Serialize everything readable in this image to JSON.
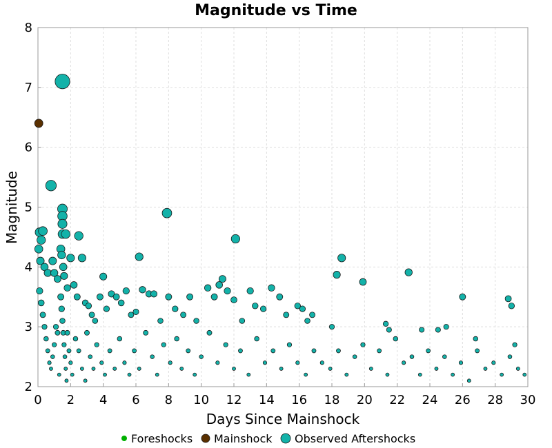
{
  "chart_data": {
    "type": "scatter",
    "title": "Magnitude vs Time",
    "xlabel": "Days Since Mainshock",
    "ylabel": "Magnitude",
    "xlim": [
      0,
      30
    ],
    "ylim": [
      2,
      8
    ],
    "xticks": [
      "0",
      "2",
      "4",
      "6",
      "8",
      "10",
      "12",
      "14",
      "16",
      "18",
      "20",
      "22",
      "24",
      "26",
      "28",
      "30"
    ],
    "yticks": [
      "2",
      "3",
      "4",
      "5",
      "6",
      "7",
      "8"
    ],
    "grid": true,
    "legend_position": "bottom",
    "series": [
      {
        "name": "Foreshocks",
        "color": "#00b000",
        "points": []
      },
      {
        "name": "Mainshock",
        "color": "#5a3000",
        "points": [
          [
            0.05,
            6.4
          ]
        ]
      },
      {
        "name": "Observed Aftershocks",
        "color": "#13b2a9",
        "points": [
          [
            1.5,
            7.1
          ],
          [
            0.8,
            5.36
          ],
          [
            7.9,
            4.9
          ],
          [
            12.1,
            4.47
          ],
          [
            18.6,
            4.15
          ],
          [
            22.7,
            3.91
          ],
          [
            19.9,
            3.75
          ],
          [
            6.2,
            4.17
          ],
          [
            1.5,
            4.97
          ],
          [
            1.5,
            4.85
          ],
          [
            1.5,
            4.72
          ],
          [
            1.5,
            4.55
          ],
          [
            1.7,
            4.55
          ],
          [
            2.5,
            4.52
          ],
          [
            0.1,
            4.58
          ],
          [
            0.2,
            4.45
          ],
          [
            0.3,
            4.6
          ],
          [
            0.05,
            4.3
          ],
          [
            0.15,
            4.1
          ],
          [
            0.4,
            4.0
          ],
          [
            0.6,
            3.9
          ],
          [
            0.9,
            4.1
          ],
          [
            1.0,
            3.9
          ],
          [
            1.2,
            3.8
          ],
          [
            1.4,
            4.3
          ],
          [
            1.45,
            4.2
          ],
          [
            1.55,
            4.0
          ],
          [
            1.6,
            3.85
          ],
          [
            1.8,
            3.65
          ],
          [
            2.0,
            4.15
          ],
          [
            2.2,
            3.7
          ],
          [
            2.4,
            3.5
          ],
          [
            2.7,
            4.15
          ],
          [
            2.9,
            3.4
          ],
          [
            3.1,
            3.35
          ],
          [
            3.3,
            3.2
          ],
          [
            3.5,
            3.1
          ],
          [
            3.8,
            3.5
          ],
          [
            4.0,
            3.84
          ],
          [
            4.2,
            3.3
          ],
          [
            4.5,
            3.55
          ],
          [
            4.8,
            3.5
          ],
          [
            5.1,
            3.4
          ],
          [
            5.4,
            3.6
          ],
          [
            5.7,
            3.2
          ],
          [
            6.0,
            3.25
          ],
          [
            6.4,
            3.62
          ],
          [
            6.8,
            3.55
          ],
          [
            7.1,
            3.55
          ],
          [
            7.5,
            3.1
          ],
          [
            8.0,
            3.5
          ],
          [
            8.4,
            3.3
          ],
          [
            8.9,
            3.2
          ],
          [
            9.3,
            3.5
          ],
          [
            9.7,
            3.1
          ],
          [
            10.4,
            3.65
          ],
          [
            10.8,
            3.5
          ],
          [
            11.1,
            3.7
          ],
          [
            11.3,
            3.8
          ],
          [
            11.6,
            3.6
          ],
          [
            12.0,
            3.45
          ],
          [
            12.5,
            3.1
          ],
          [
            13.0,
            3.6
          ],
          [
            13.3,
            3.35
          ],
          [
            13.8,
            3.3
          ],
          [
            14.3,
            3.65
          ],
          [
            14.8,
            3.5
          ],
          [
            15.2,
            3.2
          ],
          [
            15.9,
            3.35
          ],
          [
            16.2,
            3.3
          ],
          [
            16.5,
            3.1
          ],
          [
            16.8,
            3.2
          ],
          [
            18.3,
            3.87
          ],
          [
            18.0,
            3.0
          ],
          [
            21.3,
            3.05
          ],
          [
            21.5,
            2.95
          ],
          [
            23.5,
            2.95
          ],
          [
            24.5,
            2.95
          ],
          [
            25.0,
            3.0
          ],
          [
            26.0,
            3.5
          ],
          [
            26.8,
            2.8
          ],
          [
            28.8,
            3.47
          ],
          [
            29.0,
            3.35
          ],
          [
            29.2,
            2.7
          ],
          [
            0.1,
            3.6
          ],
          [
            0.2,
            3.4
          ],
          [
            0.3,
            3.2
          ],
          [
            0.4,
            3.0
          ],
          [
            0.5,
            2.8
          ],
          [
            0.6,
            2.6
          ],
          [
            0.7,
            2.4
          ],
          [
            0.8,
            2.3
          ],
          [
            0.9,
            2.5
          ],
          [
            1.0,
            2.7
          ],
          [
            1.1,
            3.0
          ],
          [
            1.2,
            2.9
          ],
          [
            1.3,
            2.2
          ],
          [
            1.4,
            3.5
          ],
          [
            1.45,
            3.3
          ],
          [
            1.5,
            3.1
          ],
          [
            1.55,
            2.9
          ],
          [
            1.6,
            2.7
          ],
          [
            1.65,
            2.5
          ],
          [
            1.7,
            2.3
          ],
          [
            1.75,
            2.1
          ],
          [
            1.8,
            2.9
          ],
          [
            1.9,
            2.6
          ],
          [
            2.0,
            2.4
          ],
          [
            2.1,
            2.2
          ],
          [
            2.3,
            2.8
          ],
          [
            2.5,
            2.6
          ],
          [
            2.7,
            2.3
          ],
          [
            2.9,
            2.1
          ],
          [
            3.0,
            2.9
          ],
          [
            3.2,
            2.5
          ],
          [
            3.4,
            2.3
          ],
          [
            3.6,
            2.7
          ],
          [
            3.9,
            2.4
          ],
          [
            4.1,
            2.2
          ],
          [
            4.4,
            2.6
          ],
          [
            4.7,
            2.3
          ],
          [
            5.0,
            2.8
          ],
          [
            5.3,
            2.4
          ],
          [
            5.6,
            2.2
          ],
          [
            5.9,
            2.6
          ],
          [
            6.2,
            2.3
          ],
          [
            6.6,
            2.9
          ],
          [
            7.0,
            2.5
          ],
          [
            7.3,
            2.2
          ],
          [
            7.7,
            2.7
          ],
          [
            8.1,
            2.4
          ],
          [
            8.5,
            2.8
          ],
          [
            8.8,
            2.3
          ],
          [
            9.2,
            2.6
          ],
          [
            9.6,
            2.2
          ],
          [
            10.0,
            2.5
          ],
          [
            10.5,
            2.9
          ],
          [
            11.0,
            2.4
          ],
          [
            11.5,
            2.7
          ],
          [
            12.0,
            2.3
          ],
          [
            12.4,
            2.6
          ],
          [
            12.9,
            2.2
          ],
          [
            13.4,
            2.8
          ],
          [
            13.9,
            2.4
          ],
          [
            14.4,
            2.6
          ],
          [
            14.9,
            2.3
          ],
          [
            15.4,
            2.7
          ],
          [
            15.9,
            2.4
          ],
          [
            16.4,
            2.2
          ],
          [
            16.9,
            2.6
          ],
          [
            17.4,
            2.4
          ],
          [
            17.9,
            2.3
          ],
          [
            18.4,
            2.6
          ],
          [
            18.9,
            2.2
          ],
          [
            19.4,
            2.5
          ],
          [
            19.9,
            2.7
          ],
          [
            20.4,
            2.3
          ],
          [
            20.9,
            2.6
          ],
          [
            21.4,
            2.2
          ],
          [
            21.9,
            2.8
          ],
          [
            22.4,
            2.4
          ],
          [
            22.9,
            2.5
          ],
          [
            23.4,
            2.2
          ],
          [
            23.9,
            2.6
          ],
          [
            24.4,
            2.3
          ],
          [
            24.9,
            2.5
          ],
          [
            25.4,
            2.2
          ],
          [
            25.9,
            2.4
          ],
          [
            26.4,
            2.1
          ],
          [
            26.9,
            2.6
          ],
          [
            27.4,
            2.3
          ],
          [
            27.9,
            2.4
          ],
          [
            28.4,
            2.2
          ],
          [
            28.9,
            2.5
          ],
          [
            29.4,
            2.3
          ],
          [
            29.8,
            2.2
          ]
        ]
      }
    ]
  }
}
